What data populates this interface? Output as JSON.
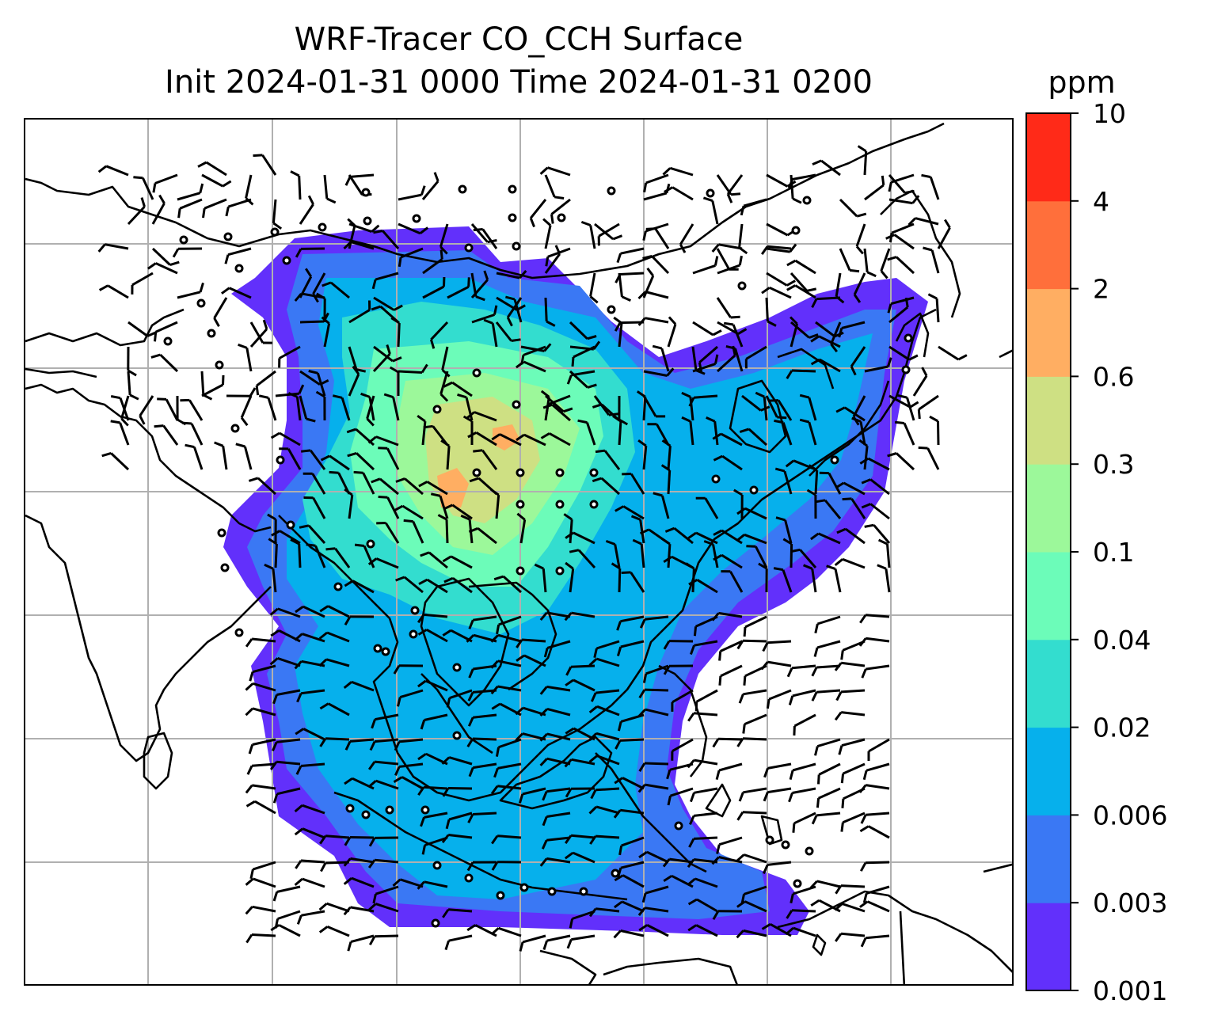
{
  "title": {
    "line1": "WRF-Tracer CO_CCH Surface",
    "line2": "Init 2024-01-31 0000 Time 2024-01-31 0200"
  },
  "colorbar": {
    "unit": "ppm",
    "levels": [
      "0.001",
      "0.003",
      "0.006",
      "0.02",
      "0.04",
      "0.1",
      "0.3",
      "0.6",
      "2",
      "4",
      "10"
    ],
    "colors": [
      "#6230fb",
      "#3a78f4",
      "#06b0ec",
      "#33ddcf",
      "#6cfcb9",
      "#9cf89a",
      "#cee083",
      "#ffae62",
      "#ff6f3b",
      "#ff2a18"
    ]
  },
  "map": {
    "coastline_color": "#000000",
    "gridline_color": "#b0b0b0",
    "barb_color": "#000000",
    "icons": [
      "wind-barb-icon",
      "calm-wind-circle-icon"
    ]
  }
}
